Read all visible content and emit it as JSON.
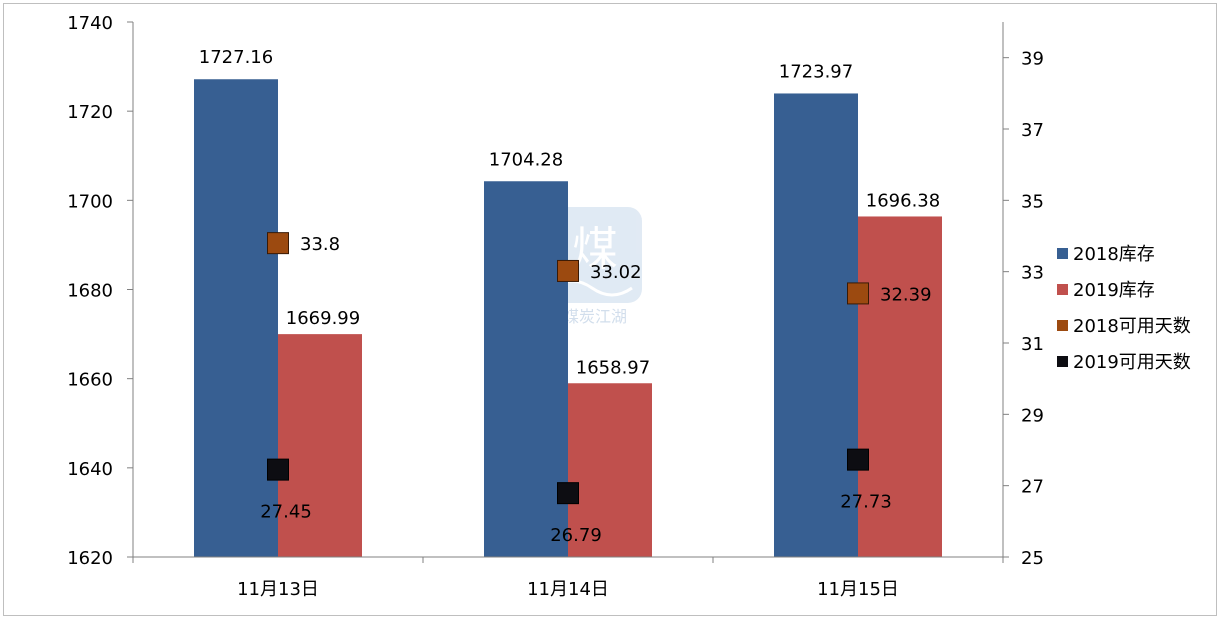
{
  "chart_data": {
    "type": "bar",
    "categories": [
      "11月13日",
      "11月14日",
      "11月15日"
    ],
    "series": [
      {
        "name": "2018库存",
        "kind": "bar",
        "axis": "left",
        "color": "#375f92",
        "values": [
          1727.16,
          1704.28,
          1723.97
        ],
        "labels": [
          "1727.16",
          "1704.28",
          "1723.97"
        ]
      },
      {
        "name": "2019库存",
        "kind": "bar",
        "axis": "left",
        "color": "#c0504d",
        "values": [
          1669.99,
          1658.97,
          1696.38
        ],
        "labels": [
          "1669.99",
          "1658.97",
          "1696.38"
        ]
      },
      {
        "name": "2018可用天数",
        "kind": "marker",
        "axis": "right",
        "color": "#9c4a10",
        "values": [
          33.8,
          33.02,
          32.39
        ],
        "labels": [
          "33.8",
          "33.02",
          "32.39"
        ]
      },
      {
        "name": "2019可用天数",
        "kind": "marker",
        "axis": "right",
        "color": "#0d0d12",
        "values": [
          27.45,
          26.79,
          27.73
        ],
        "labels": [
          "27.45",
          "26.79",
          "27.73"
        ]
      }
    ],
    "y_left": {
      "min": 1620,
      "max": 1740,
      "ticks": [
        "1620",
        "1640",
        "1660",
        "1680",
        "1700",
        "1720",
        "1740"
      ]
    },
    "y_right": {
      "min": 25,
      "max": 40,
      "ticks": [
        "25",
        "27",
        "29",
        "31",
        "33",
        "35",
        "37",
        "39"
      ]
    },
    "legend_position": "right",
    "grid": false,
    "watermark_text": "煤炭江湖"
  }
}
